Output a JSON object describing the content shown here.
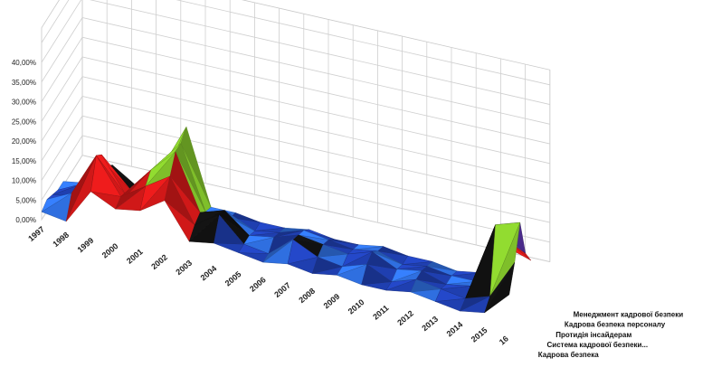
{
  "chart_data": {
    "type": "area",
    "subtype": "3d-surface",
    "title": "",
    "xlabel": "",
    "ylabel": "",
    "ylim": [
      0,
      40
    ],
    "y_ticks": [
      "0,00%",
      "5,00%",
      "10,00%",
      "15,00%",
      "20,00%",
      "25,00%",
      "30,00%",
      "35,00%",
      "40,00%"
    ],
    "categories": [
      "1997",
      "1998",
      "1999",
      "2000",
      "2001",
      "2002",
      "2003",
      "2004",
      "2005",
      "2006",
      "2007",
      "2008",
      "2009",
      "2010",
      "2011",
      "2012",
      "2013",
      "2014",
      "2015",
      "16"
    ],
    "series": [
      {
        "name": "Кадрова безпека",
        "color": "#1f4fbf",
        "values": [
          2,
          1,
          10,
          7,
          8,
          12,
          3,
          4,
          3,
          2,
          3,
          2,
          3,
          2,
          2,
          3,
          2,
          1,
          2,
          8
        ]
      },
      {
        "name": "Система кадрової безпеки...",
        "color": "#d01818",
        "values": [
          3,
          6,
          17,
          8,
          12,
          16,
          5,
          9,
          3,
          2,
          7,
          4,
          3,
          5,
          2,
          4,
          3,
          2,
          4,
          14
        ]
      },
      {
        "name": "Протидія інсайдерам",
        "color": "#111111",
        "values": [
          2,
          3,
          15,
          6,
          14,
          20,
          6,
          8,
          3,
          4,
          6,
          5,
          4,
          6,
          3,
          4,
          2,
          3,
          20,
          22
        ]
      },
      {
        "name": "Кадрова безпека персоналу",
        "color": "#7fbf2a",
        "values": [
          1,
          4,
          10,
          5,
          10,
          20,
          4,
          4,
          2,
          3,
          5,
          4,
          3,
          4,
          2,
          3,
          2,
          2,
          15,
          12
        ]
      },
      {
        "name": "Менеджмент кадрової безпеки",
        "color": "#4a2a8a",
        "values": [
          1,
          2,
          8,
          4,
          6,
          22,
          3,
          3,
          2,
          2,
          3,
          2,
          2,
          3,
          2,
          2,
          1,
          2,
          10,
          8
        ]
      }
    ],
    "series_labels_shown": [
      "Кадрова безпека",
      "Система кадрової безпеки...",
      "Протидія інсайдерам",
      "Кадрова безпека персоналу",
      "Менеджмент кадрової безпеки"
    ],
    "grid": true,
    "legend": "none"
  }
}
